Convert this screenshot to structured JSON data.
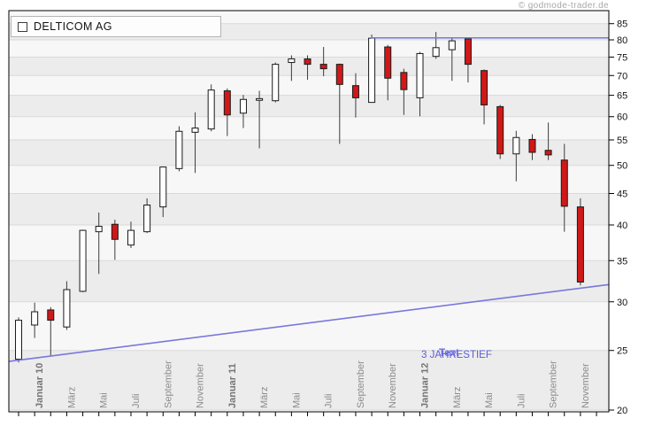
{
  "watermark": {
    "text": "© godmode-trader.de"
  },
  "legend": {
    "title": "DELTICOM AG"
  },
  "annotations": {
    "three_year_low": {
      "text": "3 JAHRESTIEF",
      "color": "#5c5cd6"
    },
    "overlap_label": {
      "text": "Text",
      "color": "#6e6ee0"
    }
  },
  "colors": {
    "up_fill": "#ffffff",
    "down_fill": "#d01818",
    "candle_border": "#1a1a1a",
    "wick": "#3c3c3c",
    "trendline": "#7878dd",
    "grid": "#d9d9d9",
    "band_dark": "#ececec",
    "band_light": "#f7f7f7",
    "axis_line": "#000000",
    "month_text": "#8c8c8c",
    "watermark": "#a8a8a8"
  },
  "chart_data": {
    "type": "candlestick",
    "title": "DELTICOM AG",
    "interval": "monthly",
    "y_axis": {
      "scale": "logarithmic",
      "side": "right",
      "min": 20,
      "max": 89,
      "ticks": [
        20,
        25,
        30,
        35,
        40,
        45,
        50,
        55,
        60,
        65,
        70,
        75,
        80,
        85
      ]
    },
    "x_axis": {
      "tick_every_months": 1,
      "labels": [
        {
          "i": 1,
          "label": "Januar 10",
          "bold": true
        },
        {
          "i": 3,
          "label": "März"
        },
        {
          "i": 5,
          "label": "Mai"
        },
        {
          "i": 7,
          "label": "Juli"
        },
        {
          "i": 9,
          "label": "September"
        },
        {
          "i": 11,
          "label": "November"
        },
        {
          "i": 13,
          "label": "Januar 11",
          "bold": true
        },
        {
          "i": 15,
          "label": "März"
        },
        {
          "i": 17,
          "label": "Mai"
        },
        {
          "i": 19,
          "label": "Juli"
        },
        {
          "i": 21,
          "label": "September"
        },
        {
          "i": 23,
          "label": "November"
        },
        {
          "i": 25,
          "label": "Januar 12",
          "bold": true
        },
        {
          "i": 27,
          "label": "März"
        },
        {
          "i": 29,
          "label": "Mai"
        },
        {
          "i": 31,
          "label": "Juli"
        },
        {
          "i": 33,
          "label": "September"
        },
        {
          "i": 35,
          "label": "November"
        }
      ]
    },
    "series": [
      {
        "m": "Dez 09",
        "o": 24.2,
        "h": 28.3,
        "l": 23.9,
        "c": 28.0
      },
      {
        "m": "Jan 10",
        "o": 27.5,
        "h": 29.9,
        "l": 26.2,
        "c": 28.9
      },
      {
        "m": "Feb 10",
        "o": 29.1,
        "h": 29.4,
        "l": 24.5,
        "c": 28.0
      },
      {
        "m": "Mär 10",
        "o": 27.3,
        "h": 32.4,
        "l": 27.0,
        "c": 31.4
      },
      {
        "m": "Apr 10",
        "o": 31.2,
        "h": 39.3,
        "l": 31.1,
        "c": 39.2
      },
      {
        "m": "Mai 10",
        "o": 39.0,
        "h": 41.9,
        "l": 33.3,
        "c": 39.8
      },
      {
        "m": "Jun 10",
        "o": 40.1,
        "h": 40.8,
        "l": 35.1,
        "c": 37.9
      },
      {
        "m": "Jul 10",
        "o": 37.1,
        "h": 40.5,
        "l": 36.7,
        "c": 39.2
      },
      {
        "m": "Aug 10",
        "o": 39.0,
        "h": 44.2,
        "l": 38.8,
        "c": 43.1
      },
      {
        "m": "Sep 10",
        "o": 42.8,
        "h": 49.8,
        "l": 41.2,
        "c": 49.7
      },
      {
        "m": "Okt 10",
        "o": 49.4,
        "h": 57.9,
        "l": 48.9,
        "c": 56.8
      },
      {
        "m": "Nov 10",
        "o": 56.6,
        "h": 61.0,
        "l": 48.6,
        "c": 57.5
      },
      {
        "m": "Dez 10",
        "o": 57.3,
        "h": 67.7,
        "l": 56.8,
        "c": 66.3
      },
      {
        "m": "Jan 11",
        "o": 66.1,
        "h": 66.7,
        "l": 55.8,
        "c": 60.4
      },
      {
        "m": "Feb 11",
        "o": 60.8,
        "h": 65.1,
        "l": 57.5,
        "c": 64.0
      },
      {
        "m": "Mär 11",
        "o": 63.8,
        "h": 66.1,
        "l": 53.3,
        "c": 64.2
      },
      {
        "m": "Apr 11",
        "o": 63.7,
        "h": 73.5,
        "l": 63.3,
        "c": 73.0
      },
      {
        "m": "Mai 11",
        "o": 73.5,
        "h": 75.5,
        "l": 68.6,
        "c": 74.5
      },
      {
        "m": "Jun 11",
        "o": 74.5,
        "h": 75.5,
        "l": 68.9,
        "c": 73.0
      },
      {
        "m": "Jul 11",
        "o": 73.0,
        "h": 77.9,
        "l": 69.8,
        "c": 71.8
      },
      {
        "m": "Aug 11",
        "o": 73.0,
        "h": 73.2,
        "l": 54.2,
        "c": 67.7
      },
      {
        "m": "Sep 11",
        "o": 67.4,
        "h": 70.6,
        "l": 59.8,
        "c": 64.4
      },
      {
        "m": "Okt 11",
        "o": 63.3,
        "h": 81.6,
        "l": 63.2,
        "c": 80.5
      },
      {
        "m": "Nov 11",
        "o": 77.9,
        "h": 78.5,
        "l": 63.8,
        "c": 69.3
      },
      {
        "m": "Dez 11",
        "o": 70.8,
        "h": 71.8,
        "l": 60.4,
        "c": 66.4
      },
      {
        "m": "Jan 12",
        "o": 64.4,
        "h": 76.5,
        "l": 60.1,
        "c": 76.0
      },
      {
        "m": "Feb 12",
        "o": 75.2,
        "h": 82.4,
        "l": 74.5,
        "c": 77.7
      },
      {
        "m": "Mär 12",
        "o": 77.1,
        "h": 80.8,
        "l": 68.6,
        "c": 79.7
      },
      {
        "m": "Apr 12",
        "o": 80.3,
        "h": 80.5,
        "l": 68.2,
        "c": 73.0
      },
      {
        "m": "Mai 12",
        "o": 71.3,
        "h": 71.6,
        "l": 58.3,
        "c": 62.7
      },
      {
        "m": "Jun 12",
        "o": 62.3,
        "h": 62.7,
        "l": 51.2,
        "c": 52.2
      },
      {
        "m": "Jul 12",
        "o": 52.2,
        "h": 56.9,
        "l": 47.1,
        "c": 55.5
      },
      {
        "m": "Aug 12",
        "o": 55.1,
        "h": 56.2,
        "l": 51.0,
        "c": 52.5
      },
      {
        "m": "Sep 12",
        "o": 52.9,
        "h": 58.7,
        "l": 51.0,
        "c": 52.0
      },
      {
        "m": "Okt 12",
        "o": 51.0,
        "h": 54.2,
        "l": 39.0,
        "c": 42.9
      },
      {
        "m": "Nov 12",
        "o": 42.8,
        "h": 44.2,
        "l": 31.9,
        "c": 32.3
      }
    ],
    "trendlines": [
      {
        "id": "support-trendline",
        "i1": -0.6,
        "p1": 24.0,
        "i2": 36.8,
        "p2": 32.0
      },
      {
        "id": "resistance-line",
        "i1": 21.95,
        "p1": 80.6,
        "i2": 36.8,
        "p2": 80.6
      }
    ]
  }
}
